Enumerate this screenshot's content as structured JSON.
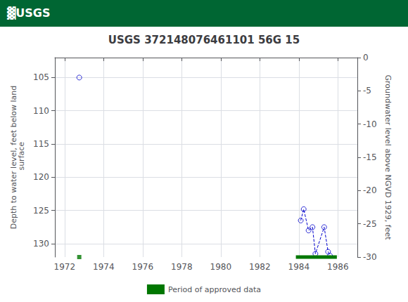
{
  "chart_data": {
    "type": "scatter",
    "title": "USGS 372148076461101 56G 15",
    "annotations": [
      {
        "text": "▓USGS",
        "color": "#ffffff",
        "background": "#006633"
      }
    ],
    "ylabel": "Depth to water level, feet below land\n surface",
    "y2label": "Groundwater level above NGVD 1929, feet",
    "x": [
      1972.75,
      1984.1,
      1984.25,
      1984.5,
      1984.7,
      1984.85,
      1985.3,
      1985.5,
      1985.6
    ],
    "series": [
      {
        "type": "scatter",
        "marker": "open_circle",
        "color": "#0000cc",
        "values": [
          105.0,
          126.5,
          124.8,
          128.0,
          127.5,
          131.5,
          127.5,
          131.2,
          131.8
        ]
      },
      {
        "type": "line",
        "line_style": "dashed",
        "color": "#0000cc",
        "values": [
          null,
          126.5,
          124.8,
          128.0,
          127.5,
          131.5,
          127.5,
          131.2,
          131.8
        ]
      },
      {
        "name": "Period of approved data",
        "type": "approved",
        "color": "#007700",
        "marker": "square",
        "x_ranges": [
          [
            1983.85,
            1985.95
          ]
        ],
        "x_points": [
          1972.75
        ],
        "y": 132.0
      }
    ],
    "xlim": [
      1971.5,
      1987.0
    ],
    "xticks": [
      1972,
      1974,
      1976,
      1978,
      1980,
      1982,
      1984,
      1986
    ],
    "ylim": [
      132,
      102
    ],
    "yticks": [
      105,
      110,
      115,
      120,
      125,
      130
    ],
    "y2lim": [
      -30,
      0
    ],
    "y2ticks": [
      0,
      -5,
      -10,
      -15,
      -20,
      -25,
      -30
    ],
    "grid": true,
    "legend": "bottom"
  }
}
